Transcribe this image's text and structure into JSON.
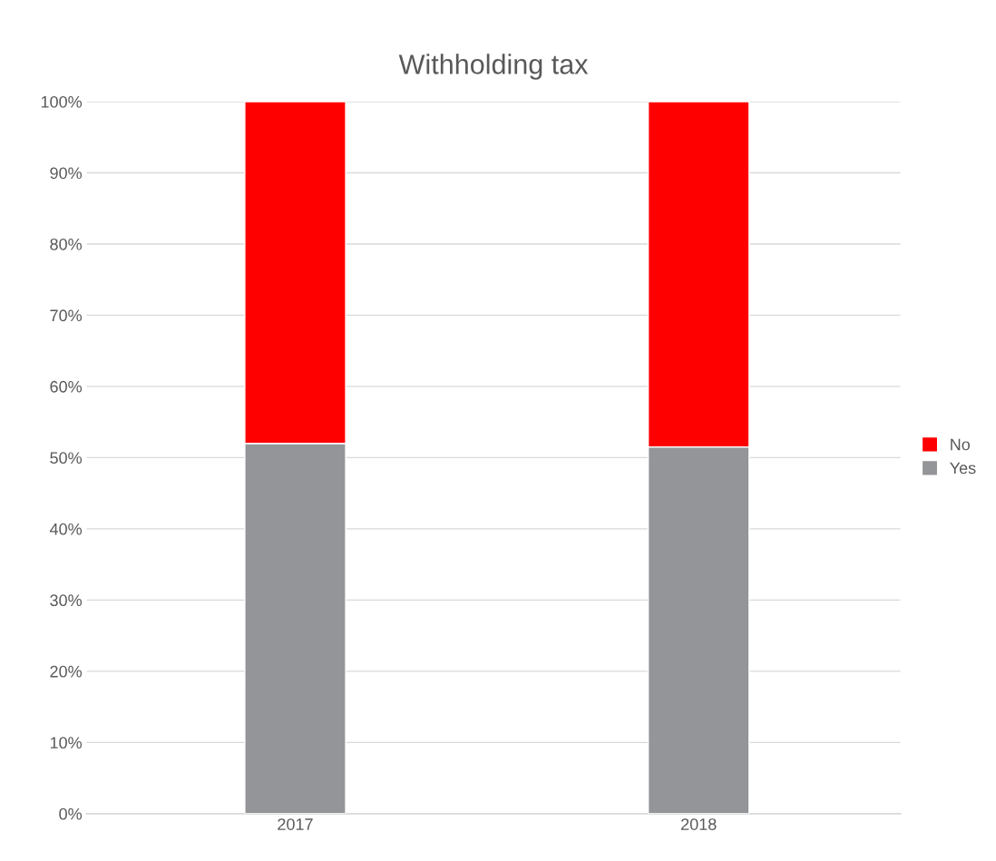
{
  "chart_data": {
    "type": "bar",
    "title": "Withholding tax",
    "stacked": true,
    "categories": [
      "2017",
      "2018"
    ],
    "series": [
      {
        "name": "Yes",
        "color": "#939598",
        "values": [
          52,
          51.5
        ]
      },
      {
        "name": "No",
        "color": "#ff0000",
        "values": [
          48,
          48.5
        ]
      }
    ],
    "ylim": [
      0,
      100
    ],
    "yticks": [
      {
        "value": 0,
        "label": "0%"
      },
      {
        "value": 10,
        "label": "10%"
      },
      {
        "value": 20,
        "label": "20%"
      },
      {
        "value": 30,
        "label": "30%"
      },
      {
        "value": 40,
        "label": "40%"
      },
      {
        "value": 50,
        "label": "50%"
      },
      {
        "value": 60,
        "label": "60%"
      },
      {
        "value": 70,
        "label": "70%"
      },
      {
        "value": 80,
        "label": "80%"
      },
      {
        "value": 90,
        "label": "90%"
      },
      {
        "value": 100,
        "label": "100%"
      }
    ],
    "grid": "y",
    "legend": "right"
  }
}
